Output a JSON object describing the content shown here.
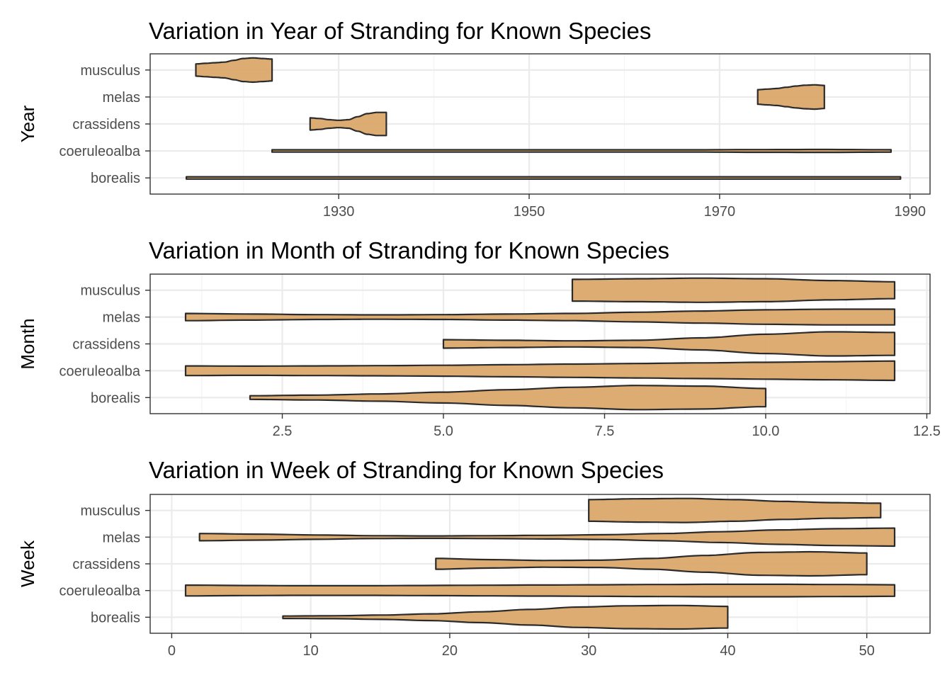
{
  "chart_data": [
    {
      "type": "violin",
      "title": "Variation in Year of Stranding for Known Species",
      "ylabel": "Year",
      "xlabel": "",
      "categories": [
        "borealis",
        "coeruleoalba",
        "crassidens",
        "melas",
        "musculus"
      ],
      "xlim": [
        1910.2,
        1992.1
      ],
      "x_ticks": [
        1930,
        1950,
        1970,
        1990
      ],
      "x_tick_labels": [
        "1930",
        "1950",
        "1970",
        "1990"
      ],
      "grid": true,
      "violins": [
        {
          "category": "borealis",
          "min": 1914,
          "max": 1989,
          "profile": [
            0.03,
            0.03,
            0.03,
            0.03,
            0.03
          ]
        },
        {
          "category": "coeruleoalba",
          "min": 1923,
          "max": 1988,
          "profile": [
            0.03,
            0.03,
            0.03,
            0.04,
            0.05,
            0.07,
            0.09,
            0.11,
            0.12,
            0.1
          ]
        },
        {
          "category": "crassidens",
          "min": 1927,
          "max": 1935,
          "profile": [
            0.5,
            0.45,
            0.35,
            0.3,
            0.35,
            0.6,
            0.85,
            0.95,
            0.95
          ]
        },
        {
          "category": "melas",
          "min": 1974,
          "max": 1981,
          "profile": [
            0.6,
            0.65,
            0.7,
            0.8,
            0.9,
            0.97,
            1.0,
            0.95
          ]
        },
        {
          "category": "musculus",
          "min": 1915,
          "max": 1923,
          "profile": [
            0.5,
            0.55,
            0.6,
            0.65,
            0.8,
            0.95,
            1.0,
            0.95,
            0.9
          ]
        }
      ]
    },
    {
      "type": "violin",
      "title": "Variation in Month of Stranding for Known Species",
      "ylabel": "Month",
      "xlabel": "",
      "categories": [
        "borealis",
        "coeruleoalba",
        "crassidens",
        "melas",
        "musculus"
      ],
      "xlim": [
        0.45,
        12.55
      ],
      "x_ticks": [
        2.5,
        5.0,
        7.5,
        10.0,
        12.5
      ],
      "x_tick_labels": [
        "2.5",
        "5.0",
        "7.5",
        "10.0",
        "12.5"
      ],
      "grid": true,
      "violins": [
        {
          "category": "borealis",
          "min": 2,
          "max": 10,
          "profile": [
            0.15,
            0.2,
            0.3,
            0.45,
            0.65,
            0.85,
            1.0,
            0.95,
            0.75
          ]
        },
        {
          "category": "coeruleoalba",
          "min": 1,
          "max": 12,
          "profile": [
            0.4,
            0.38,
            0.4,
            0.42,
            0.45,
            0.5,
            0.55,
            0.6,
            0.65,
            0.7,
            0.75,
            0.8
          ]
        },
        {
          "category": "crassidens",
          "min": 5,
          "max": 12,
          "profile": [
            0.35,
            0.3,
            0.25,
            0.3,
            0.5,
            0.8,
            1.0,
            0.95
          ]
        },
        {
          "category": "melas",
          "min": 1,
          "max": 12,
          "profile": [
            0.3,
            0.25,
            0.2,
            0.18,
            0.2,
            0.25,
            0.3,
            0.4,
            0.5,
            0.6,
            0.65,
            0.65
          ]
        },
        {
          "category": "musculus",
          "min": 7,
          "max": 12,
          "profile": [
            0.9,
            0.95,
            1.0,
            0.95,
            0.8,
            0.7
          ]
        }
      ]
    },
    {
      "type": "violin",
      "title": "Variation in Week of Stranding for Known Species",
      "ylabel": "Week",
      "xlabel": "",
      "categories": [
        "borealis",
        "coeruleoalba",
        "crassidens",
        "melas",
        "musculus"
      ],
      "xlim": [
        -1.55,
        54.55
      ],
      "x_ticks": [
        0,
        10,
        20,
        30,
        40,
        50
      ],
      "x_tick_labels": [
        "0",
        "10",
        "20",
        "30",
        "40",
        "50"
      ],
      "grid": true,
      "violins": [
        {
          "category": "borealis",
          "min": 8,
          "max": 40,
          "profile": [
            0.1,
            0.12,
            0.18,
            0.28,
            0.45,
            0.65,
            0.85,
            0.95,
            0.98,
            0.9
          ]
        },
        {
          "category": "coeruleoalba",
          "min": 1,
          "max": 52,
          "profile": [
            0.45,
            0.42,
            0.4,
            0.4,
            0.42,
            0.44,
            0.46,
            0.48,
            0.5,
            0.52,
            0.52,
            0.5,
            0.48
          ]
        },
        {
          "category": "crassidens",
          "min": 19,
          "max": 50,
          "profile": [
            0.45,
            0.35,
            0.28,
            0.3,
            0.45,
            0.7,
            0.95,
            1.0,
            0.9
          ]
        },
        {
          "category": "melas",
          "min": 2,
          "max": 52,
          "profile": [
            0.3,
            0.25,
            0.18,
            0.12,
            0.1,
            0.12,
            0.15,
            0.2,
            0.3,
            0.45,
            0.6,
            0.7,
            0.75
          ]
        },
        {
          "category": "musculus",
          "min": 30,
          "max": 51,
          "profile": [
            0.9,
            0.97,
            1.0,
            0.9,
            0.75,
            0.65,
            0.6
          ]
        }
      ]
    }
  ],
  "colors": {
    "violin_fill": "#dba86a",
    "violin_stroke": "#2b2b2b",
    "panel_border": "#333333",
    "grid_major": "#ebebeb",
    "grid_minor": "#f5f5f5",
    "tick": "#333333"
  }
}
